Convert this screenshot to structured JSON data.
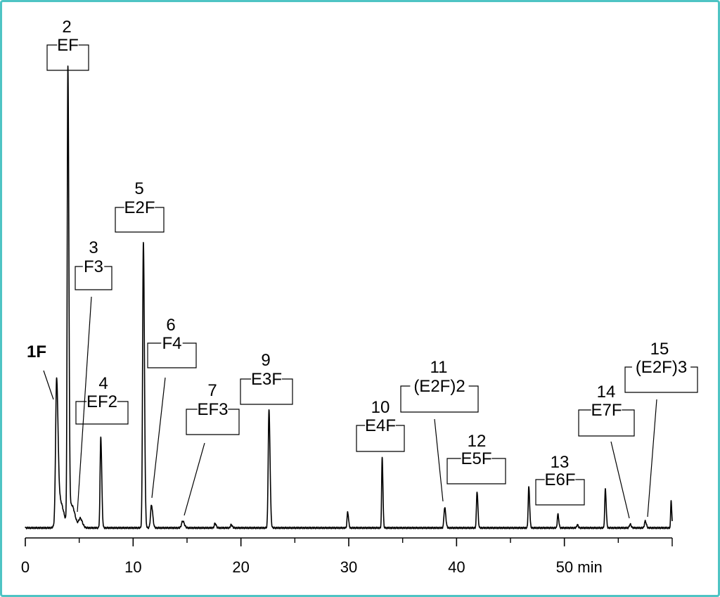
{
  "chart_data": {
    "type": "line",
    "title": "",
    "xlabel": "",
    "ylabel": "",
    "x_unit": "min",
    "xlim": [
      0,
      60
    ],
    "x_ticks": [
      "0",
      "10",
      "20",
      "30",
      "40",
      "50 min"
    ],
    "x_tick_values": [
      0,
      10,
      20,
      30,
      40,
      50
    ],
    "minor_tick_values": [
      5,
      15,
      25,
      35,
      45,
      55,
      60
    ],
    "grid": false,
    "legend": "none",
    "series": [
      {
        "color": "#000000",
        "baseline": 2,
        "peaks": [
          {
            "t": 2.9,
            "h": 30,
            "w": 0.13
          },
          {
            "t": 3.2,
            "h": 6,
            "w": 0.35
          },
          {
            "t": 3.95,
            "h": 100,
            "w": 0.09
          },
          {
            "t": 4.3,
            "h": 5,
            "w": 0.3
          },
          {
            "t": 5.1,
            "h": 2,
            "w": 0.2
          },
          {
            "t": 7.0,
            "h": 20,
            "w": 0.09
          },
          {
            "t": 10.95,
            "h": 63,
            "w": 0.1
          },
          {
            "t": 11.7,
            "h": 5,
            "w": 0.12
          },
          {
            "t": 14.6,
            "h": 1.5,
            "w": 0.15
          },
          {
            "t": 17.6,
            "h": 1,
            "w": 0.1
          },
          {
            "t": 19.1,
            "h": 0.7,
            "w": 0.1
          },
          {
            "t": 22.6,
            "h": 26,
            "w": 0.1
          },
          {
            "t": 29.9,
            "h": 3.5,
            "w": 0.08
          },
          {
            "t": 33.1,
            "h": 15.5,
            "w": 0.07
          },
          {
            "t": 38.9,
            "h": 4.5,
            "w": 0.1
          },
          {
            "t": 41.9,
            "h": 8,
            "w": 0.08
          },
          {
            "t": 46.7,
            "h": 9,
            "w": 0.08
          },
          {
            "t": 49.4,
            "h": 3,
            "w": 0.08
          },
          {
            "t": 51.2,
            "h": 0.7,
            "w": 0.08
          },
          {
            "t": 53.8,
            "h": 8.5,
            "w": 0.08
          },
          {
            "t": 56.1,
            "h": 0.8,
            "w": 0.1
          },
          {
            "t": 57.5,
            "h": 1.5,
            "w": 0.1
          },
          {
            "t": 59.9,
            "h": 6,
            "w": 0.06
          }
        ]
      }
    ],
    "annotations": [
      {
        "id": "1F",
        "number": "1F",
        "label": "",
        "bold": true,
        "peak_time": 2.9
      },
      {
        "id": "2",
        "number": "2",
        "label": "EF",
        "peak_time": 3.95
      },
      {
        "id": "3",
        "number": "3",
        "label": "F3",
        "peak_time": 4.7
      },
      {
        "id": "4",
        "number": "4",
        "label": "EF2",
        "peak_time": 7.0
      },
      {
        "id": "5",
        "number": "5",
        "label": "E2F",
        "peak_time": 10.95
      },
      {
        "id": "6",
        "number": "6",
        "label": "F4",
        "peak_time": 11.7
      },
      {
        "id": "7",
        "number": "7",
        "label": "EF3",
        "peak_time": 14.6
      },
      {
        "id": "9",
        "number": "9",
        "label": "E3F",
        "peak_time": 22.6
      },
      {
        "id": "10",
        "number": "10",
        "label": "E4F",
        "peak_time": 33.1
      },
      {
        "id": "11",
        "number": "11",
        "label": "(E2F)2",
        "peak_time": 38.9
      },
      {
        "id": "12",
        "number": "12",
        "label": "E5F",
        "peak_time": 41.9
      },
      {
        "id": "13",
        "number": "13",
        "label": "E6F",
        "peak_time": 49.4
      },
      {
        "id": "14",
        "number": "14",
        "label": "E7F",
        "peak_time": 56.1
      },
      {
        "id": "15",
        "number": "15",
        "label": "(E2F)3",
        "peak_time": 57.5
      }
    ]
  }
}
